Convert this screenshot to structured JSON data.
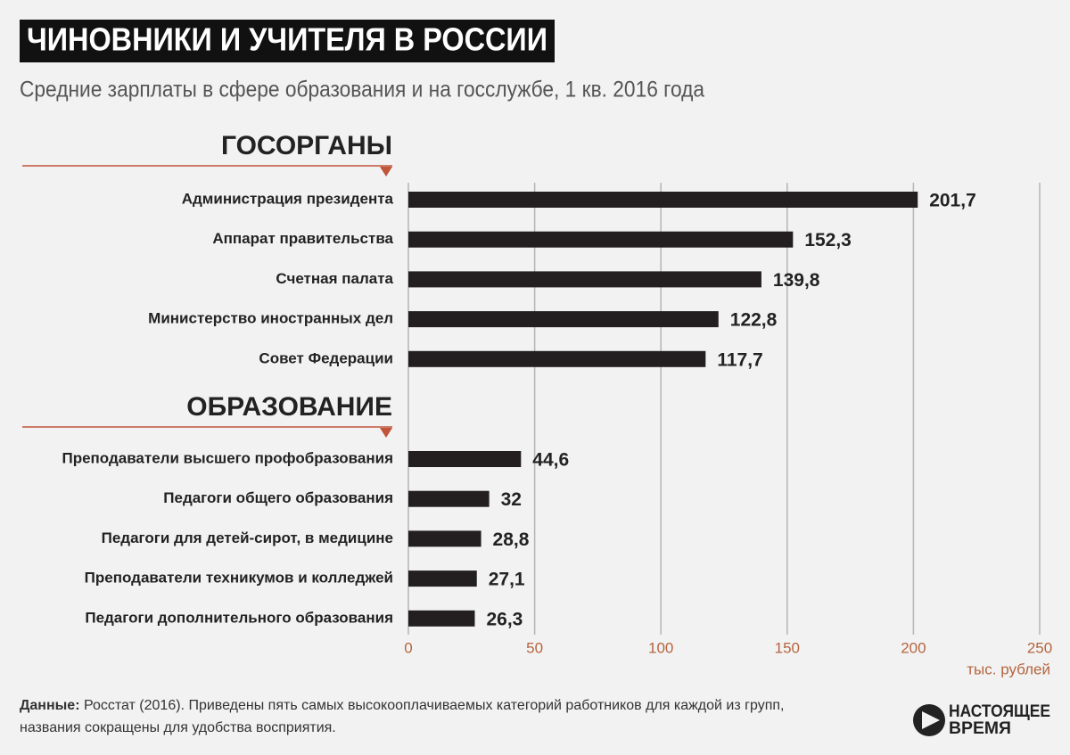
{
  "chart_data": {
    "type": "bar",
    "orientation": "horizontal",
    "title": "ЧИНОВНИКИ И УЧИТЕЛЯ В РОССИИ",
    "subtitle": "Средние зарплаты в сфере образования и на госслужбе, 1 кв. 2016 года",
    "color": "#231f20",
    "grid": true,
    "xlim": [
      0,
      250
    ],
    "xticks": [
      0,
      50,
      100,
      150,
      200,
      250
    ],
    "x_label": "тыс. рублей",
    "groups": [
      {
        "title": "ГОСОРГАНЫ",
        "categories": [
          "Администрация президента",
          "Аппарат правительства",
          "Счетная палата",
          "Министерство иностранных дел",
          "Совет Федерации"
        ],
        "values": [
          201.7,
          152.3,
          139.8,
          122.8,
          117.7
        ],
        "value_labels": [
          "201,7",
          "152,3",
          "139,8",
          "122,8",
          "117,7"
        ]
      },
      {
        "title": "ОБРАЗОВАНИЕ",
        "categories": [
          "Преподаватели высшего профобразования",
          "Педагоги общего образования",
          "Педагоги для детей-сирот, в медицине",
          "Преподаватели техникумов и колледжей",
          "Педагоги дополнительного образования"
        ],
        "values": [
          44.6,
          32,
          28.8,
          27.1,
          26.3
        ],
        "value_labels": [
          "44,6",
          "32",
          "28,8",
          "27,1",
          "26,3"
        ]
      }
    ],
    "source_label": "Данные:",
    "source_lines": [
      "Росстат (2016). Приведены пять самых высокооплачиваемых категорий работников для каждой из групп,",
      "названия сокращены для удобства восприятия."
    ],
    "logo": [
      "НАСТОЯЩЕЕ",
      "ВРЕМЯ"
    ]
  }
}
